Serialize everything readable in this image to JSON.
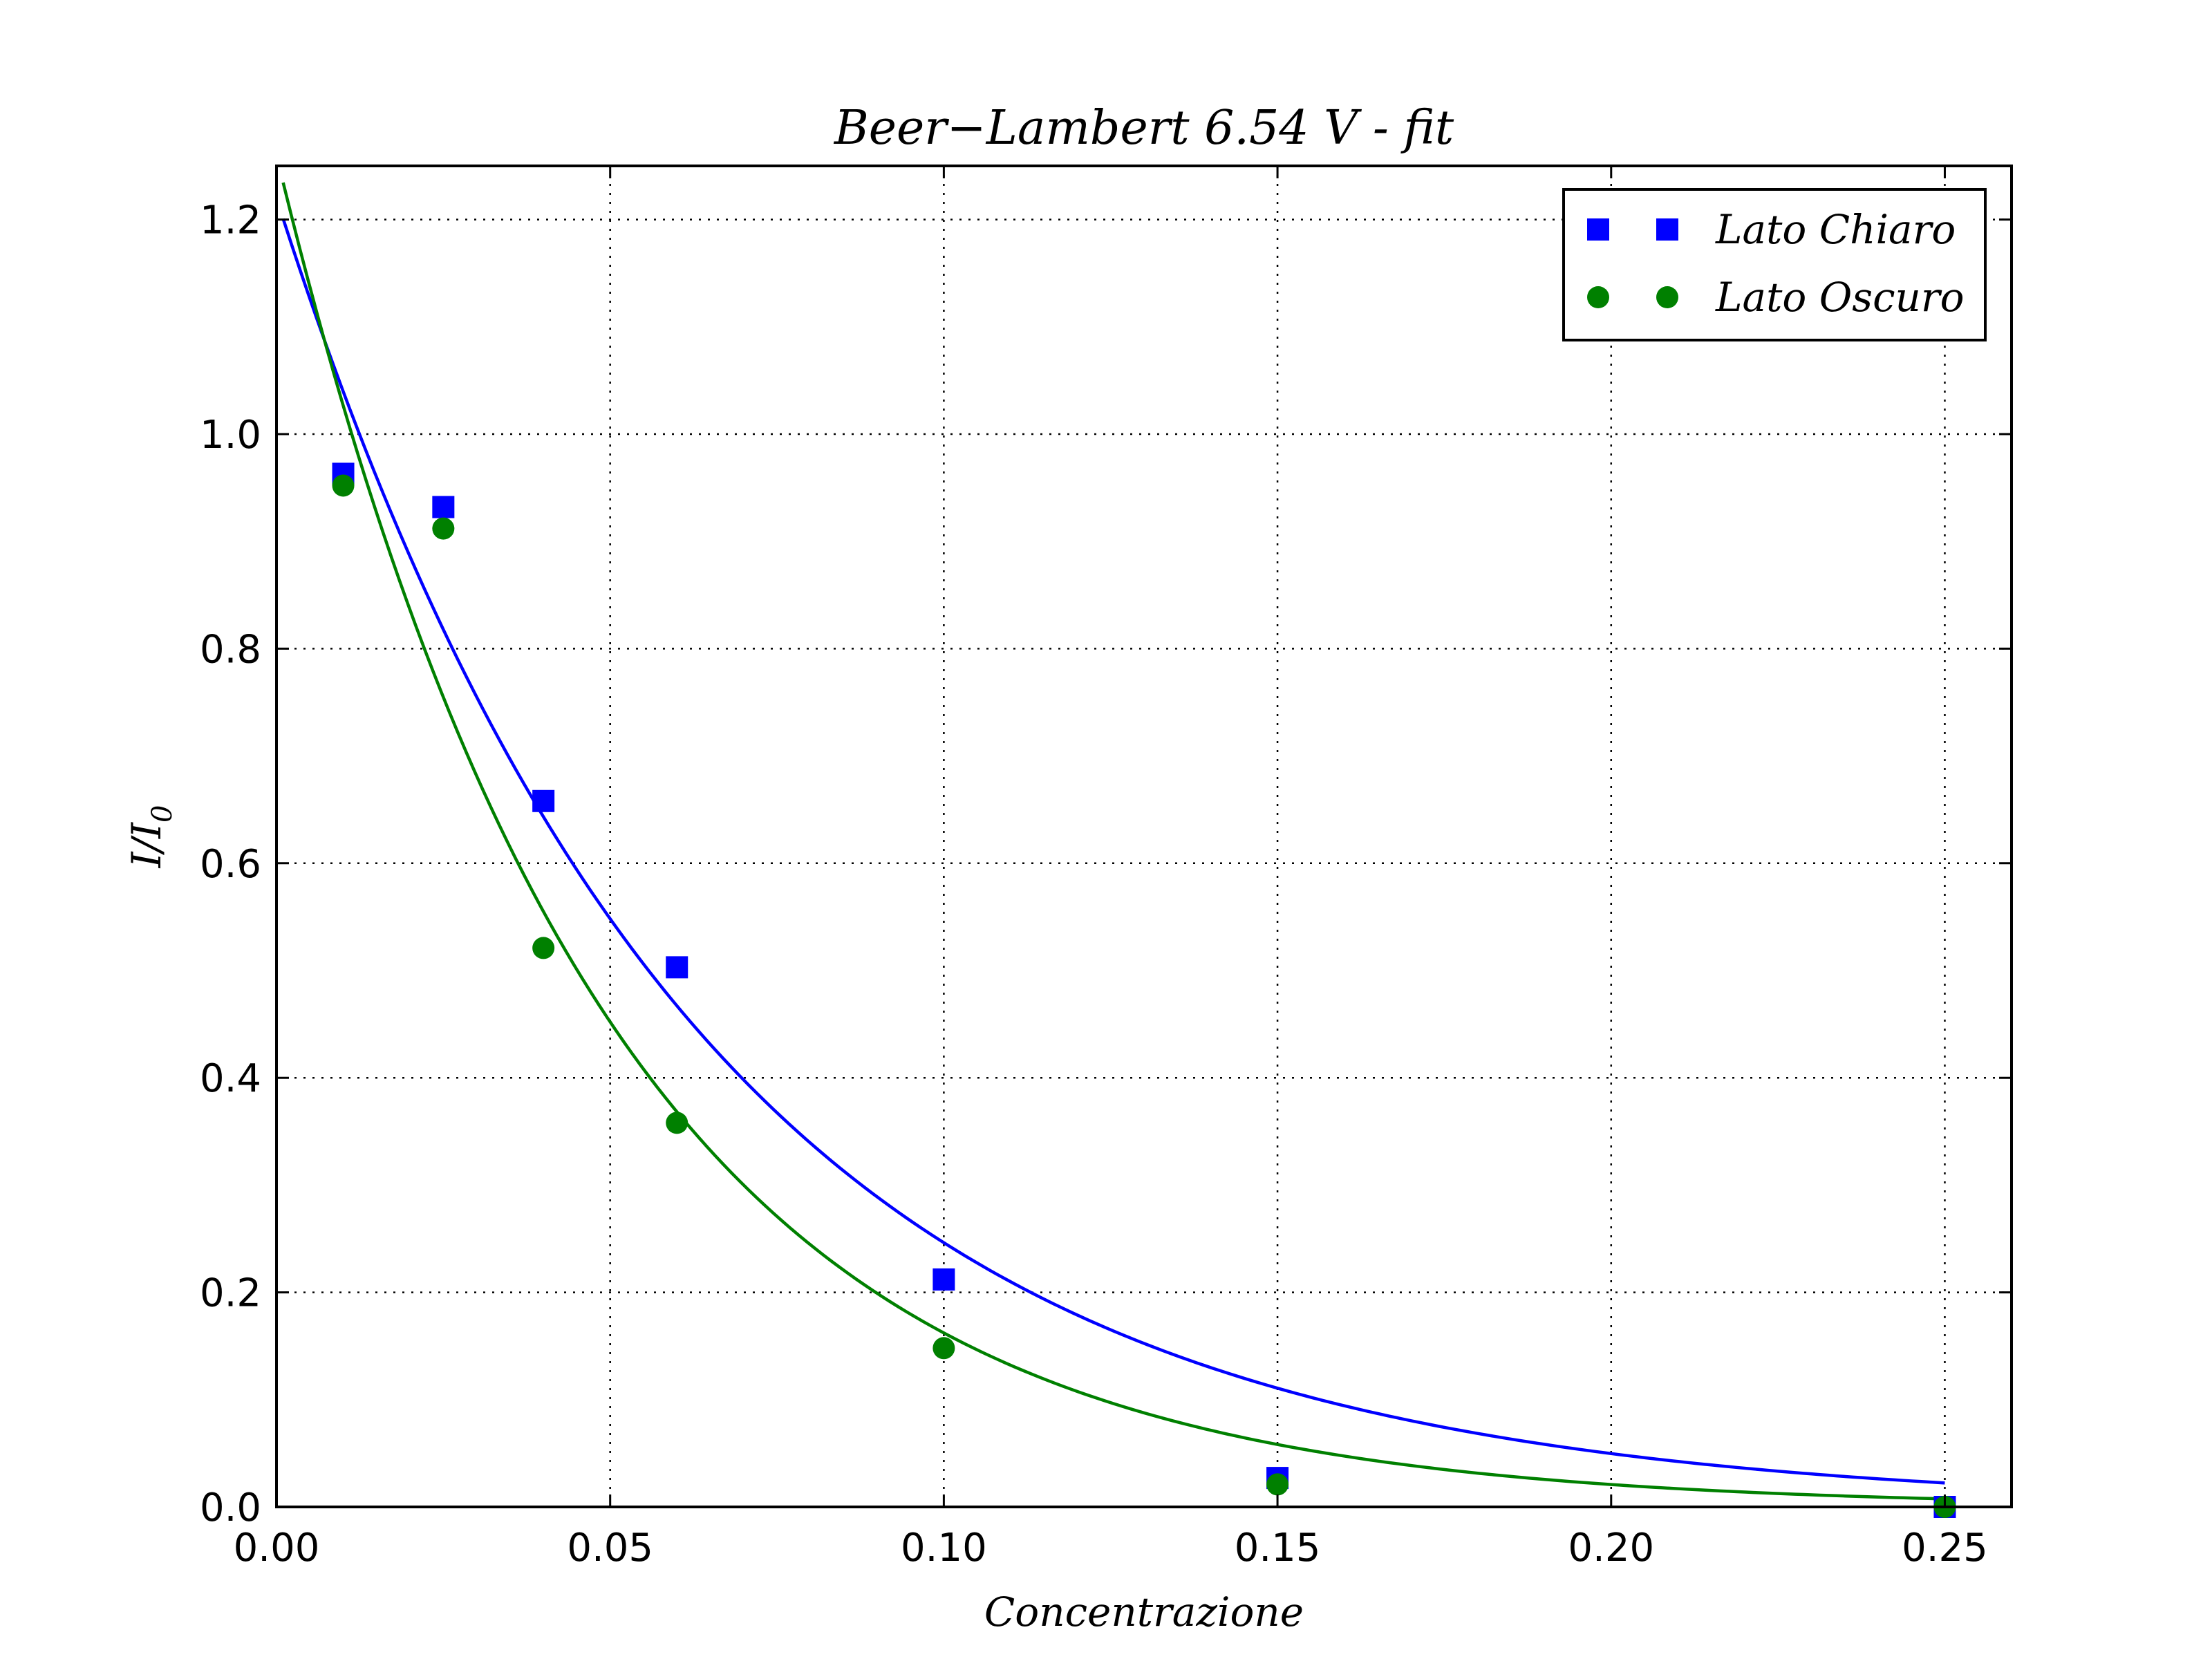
{
  "chart_data": {
    "type": "scatter",
    "title": "Beer−Lambert 6.54 V - fit",
    "xlabel": "Concentrazione",
    "ylabel": "I/I",
    "ylabel_subscript": "0",
    "xlim": [
      0.0,
      0.26
    ],
    "ylim": [
      0.0,
      1.25
    ],
    "xticks": [
      0.0,
      0.05,
      0.1,
      0.15,
      0.2,
      0.25
    ],
    "xtick_labels": [
      "0.00",
      "0.05",
      "0.10",
      "0.15",
      "0.20",
      "0.25"
    ],
    "yticks": [
      0.0,
      0.2,
      0.4,
      0.6,
      0.8,
      1.0,
      1.2
    ],
    "ytick_labels": [
      "0.0",
      "0.2",
      "0.4",
      "0.6",
      "0.8",
      "1.0",
      "1.2"
    ],
    "grid": true,
    "legend_position": "top-right",
    "series": [
      {
        "name": "Lato Chiaro",
        "marker": "square",
        "color": "#0000ff",
        "x": [
          0.01,
          0.025,
          0.04,
          0.06,
          0.1,
          0.15,
          0.25
        ],
        "y": [
          0.963,
          0.932,
          0.658,
          0.503,
          0.212,
          0.027,
          0.0
        ],
        "fit": {
          "model": "exponential",
          "a": 1.22,
          "k": 16.0,
          "x_range": [
            0.001,
            0.25
          ]
        }
      },
      {
        "name": "Lato Oscuro",
        "marker": "circle",
        "color": "#008000",
        "x": [
          0.01,
          0.025,
          0.04,
          0.06,
          0.1,
          0.15,
          0.25
        ],
        "y": [
          0.952,
          0.912,
          0.521,
          0.358,
          0.148,
          0.021,
          0.0
        ],
        "fit": {
          "model": "exponential",
          "a": 1.26,
          "k": 20.5,
          "x_range": [
            0.001,
            0.25
          ]
        }
      }
    ]
  }
}
